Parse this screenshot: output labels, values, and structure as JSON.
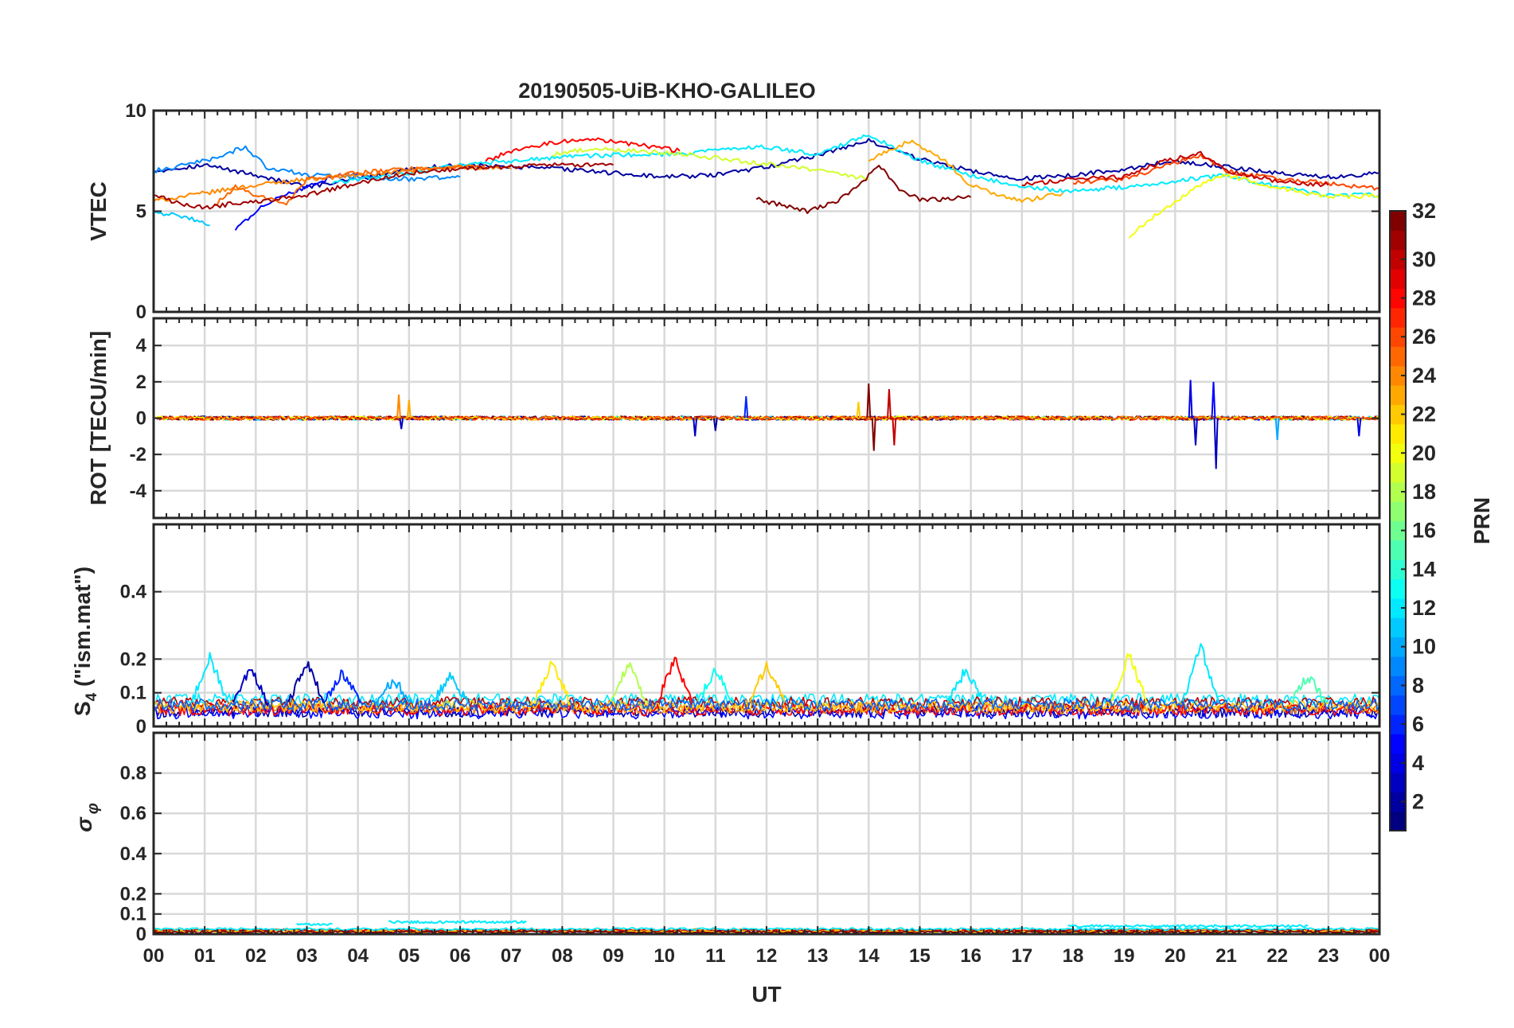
{
  "title": "20190505-UiB-KHO-GALILEO",
  "chart_data": [
    {
      "type": "line",
      "panel": "vtec",
      "ylabel": "VTEC",
      "ylim": [
        0,
        10
      ],
      "yticks": [
        0,
        5,
        10
      ],
      "grid": true,
      "baseline": 6.7,
      "series": [
        {
          "prn": 2,
          "x": [
            0,
            1,
            2,
            3,
            4,
            5,
            6,
            7,
            8,
            9,
            10,
            11,
            12,
            13,
            14,
            15,
            16,
            17,
            18,
            19,
            20,
            21,
            22,
            23,
            24
          ],
          "y": [
            7.0,
            7.3,
            6.8,
            6.2,
            6.6,
            7.1,
            7.3,
            7.2,
            7.1,
            6.9,
            6.7,
            6.8,
            7.2,
            7.8,
            8.5,
            7.6,
            7.0,
            6.6,
            6.8,
            7.1,
            7.5,
            7.2,
            6.9,
            6.7,
            6.9
          ]
        },
        {
          "prn": 5,
          "x": [
            1.6,
            2,
            2.5,
            3,
            3.5,
            4
          ],
          "y": [
            4.1,
            5.0,
            5.8,
            6.2,
            6.7,
            6.9
          ]
        },
        {
          "prn": 9,
          "x": [
            0,
            1,
            1.8,
            2.2,
            3,
            4,
            5,
            6
          ],
          "y": [
            7.0,
            7.5,
            8.2,
            7.2,
            6.8,
            6.7,
            6.6,
            6.7
          ]
        },
        {
          "prn": 11,
          "x": [
            0,
            0.4,
            0.8,
            1.1
          ],
          "y": [
            5.0,
            4.8,
            4.6,
            4.3
          ]
        },
        {
          "prn": 12,
          "x": [
            3.5,
            5,
            6,
            7,
            8,
            9,
            10,
            11,
            12,
            13,
            14,
            15,
            16,
            17,
            18,
            19,
            20,
            21,
            22,
            23,
            24
          ],
          "y": [
            6.4,
            6.9,
            7.3,
            7.5,
            7.7,
            7.8,
            7.8,
            8.0,
            8.2,
            7.8,
            8.8,
            7.5,
            6.8,
            6.2,
            6.0,
            6.2,
            6.5,
            6.8,
            6.2,
            5.8,
            5.8
          ]
        },
        {
          "prn": 19,
          "x": [
            7.8,
            8.5,
            9.5,
            10.5,
            11.5,
            12.5,
            13.5,
            14
          ],
          "y": [
            7.8,
            8.1,
            8.0,
            7.8,
            7.5,
            7.2,
            6.8,
            6.6
          ]
        },
        {
          "prn": 20,
          "x": [
            19.1,
            19.5,
            20,
            20.5,
            21,
            22,
            23,
            24
          ],
          "y": [
            3.7,
            4.6,
            5.5,
            6.3,
            6.8,
            6.2,
            5.7,
            5.8
          ]
        },
        {
          "prn": 24,
          "x": [
            0,
            1,
            2,
            3,
            4,
            5,
            6,
            7
          ],
          "y": [
            5.5,
            5.9,
            6.3,
            6.6,
            6.8,
            7.0,
            7.2,
            7.1
          ]
        },
        {
          "prn": 25,
          "x": [
            1.2,
            1.6,
            2,
            2.6,
            3,
            4,
            5,
            6,
            6.5
          ],
          "y": [
            5.3,
            6.2,
            5.8,
            5.4,
            6.6,
            6.9,
            7.1,
            7.2,
            7.3
          ]
        },
        {
          "prn": 23,
          "x": [
            14,
            14.8,
            15.5,
            16,
            16.5,
            17,
            17.8
          ],
          "y": [
            7.5,
            8.5,
            7.5,
            6.3,
            5.8,
            5.5,
            5.9
          ]
        },
        {
          "prn": 28,
          "x": [
            6.5,
            7,
            7.8,
            8.5,
            9.5,
            10.3
          ],
          "y": [
            7.5,
            8.0,
            8.4,
            8.6,
            8.3,
            8.0
          ]
        },
        {
          "prn": 26,
          "x": [
            18,
            19,
            20,
            20.5,
            21,
            22,
            23,
            24
          ],
          "y": [
            6.4,
            6.6,
            7.4,
            7.8,
            7.0,
            6.6,
            6.4,
            6.1
          ]
        },
        {
          "prn": 31,
          "x": [
            0,
            0.5,
            1,
            3,
            4,
            5,
            6,
            7,
            8,
            9
          ],
          "y": [
            5.8,
            5.4,
            5.2,
            5.8,
            6.4,
            6.9,
            7.1,
            7.2,
            7.3,
            7.3
          ]
        },
        {
          "prn": 32,
          "x": [
            11.8,
            12.3,
            12.8,
            13.3,
            13.8,
            14.2,
            14.6,
            15,
            15.5,
            16
          ],
          "y": [
            5.6,
            5.3,
            5.0,
            5.4,
            6.2,
            7.3,
            6.1,
            5.6,
            5.6,
            5.7
          ]
        },
        {
          "prn": 30,
          "x": [
            17,
            18,
            19,
            19.8,
            20.5,
            21,
            22,
            23
          ],
          "y": [
            6.3,
            6.6,
            6.7,
            7.5,
            7.9,
            7.0,
            6.5,
            6.3
          ]
        }
      ]
    },
    {
      "type": "line",
      "panel": "rot",
      "ylabel": "ROT [TECU/min]",
      "ylim": [
        -5.5,
        5.5
      ],
      "yticks": [
        -4,
        -2,
        0,
        2,
        4
      ],
      "grid": true,
      "baseline": 0,
      "spikes": [
        {
          "prn": 24,
          "x": 4.8,
          "y": 1.3
        },
        {
          "prn": 3,
          "x": 4.85,
          "y": -0.6
        },
        {
          "prn": 23,
          "x": 5.0,
          "y": 1.0
        },
        {
          "prn": 3,
          "x": 10.6,
          "y": -1.0
        },
        {
          "prn": 6,
          "x": 11.6,
          "y": 1.2
        },
        {
          "prn": 2,
          "x": 11.0,
          "y": -0.7
        },
        {
          "prn": 32,
          "x": 14.0,
          "y": 1.9
        },
        {
          "prn": 32,
          "x": 14.1,
          "y": -1.8
        },
        {
          "prn": 30,
          "x": 14.4,
          "y": 1.6
        },
        {
          "prn": 30,
          "x": 14.5,
          "y": -1.5
        },
        {
          "prn": 22,
          "x": 13.8,
          "y": 0.9
        },
        {
          "prn": 4,
          "x": 20.3,
          "y": 2.1
        },
        {
          "prn": 3,
          "x": 20.4,
          "y": -1.5
        },
        {
          "prn": 5,
          "x": 20.75,
          "y": 2.0
        },
        {
          "prn": 3,
          "x": 20.8,
          "y": -2.8
        },
        {
          "prn": 10,
          "x": 22.0,
          "y": -1.2
        },
        {
          "prn": 4,
          "x": 23.6,
          "y": -1.0
        }
      ]
    },
    {
      "type": "line",
      "panel": "s4",
      "ylabel": "S4 (\"ism.mat\")",
      "ylim": [
        0,
        0.6
      ],
      "yticks": [
        0,
        0.1,
        0.2,
        0.4
      ],
      "grid": true,
      "baseline": 0.06,
      "peaks": [
        {
          "prn": 12,
          "x": 1.1,
          "y": 0.21
        },
        {
          "prn": 3,
          "x": 1.9,
          "y": 0.17
        },
        {
          "prn": 2,
          "x": 3.0,
          "y": 0.19
        },
        {
          "prn": 6,
          "x": 3.7,
          "y": 0.16
        },
        {
          "prn": 10,
          "x": 4.7,
          "y": 0.14
        },
        {
          "prn": 11,
          "x": 5.8,
          "y": 0.15
        },
        {
          "prn": 21,
          "x": 7.8,
          "y": 0.19
        },
        {
          "prn": 18,
          "x": 9.3,
          "y": 0.19
        },
        {
          "prn": 28,
          "x": 10.2,
          "y": 0.2
        },
        {
          "prn": 13,
          "x": 11.0,
          "y": 0.17
        },
        {
          "prn": 22,
          "x": 12.0,
          "y": 0.18
        },
        {
          "prn": 12,
          "x": 15.9,
          "y": 0.17
        },
        {
          "prn": 20,
          "x": 19.1,
          "y": 0.22
        },
        {
          "prn": 12,
          "x": 20.5,
          "y": 0.24
        },
        {
          "prn": 15,
          "x": 22.6,
          "y": 0.15
        }
      ]
    },
    {
      "type": "line",
      "panel": "sigma",
      "ylabel": "σ φ",
      "ylim": [
        0,
        1
      ],
      "yticks": [
        0,
        0.1,
        0.2,
        0.4,
        0.6,
        0.8
      ],
      "grid": true,
      "baseline": 0.02,
      "bands": [
        {
          "prn": 12,
          "x": [
            2.8,
            3.5
          ],
          "y": 0.05
        },
        {
          "prn": 12,
          "x": [
            4.6,
            7.3
          ],
          "y": 0.06
        },
        {
          "prn": 12,
          "x": [
            17.9,
            22.6
          ],
          "y": 0.04
        }
      ]
    }
  ],
  "x_axis": {
    "label": "UT",
    "range": [
      0,
      24
    ],
    "ticks": [
      "00",
      "01",
      "02",
      "03",
      "04",
      "05",
      "06",
      "07",
      "08",
      "09",
      "10",
      "11",
      "12",
      "13",
      "14",
      "15",
      "16",
      "17",
      "18",
      "19",
      "20",
      "21",
      "22",
      "23",
      "00"
    ]
  },
  "colorbar": {
    "label": "PRN",
    "range": [
      1,
      32
    ],
    "ticks": [
      2,
      4,
      6,
      8,
      10,
      12,
      14,
      16,
      18,
      20,
      22,
      24,
      26,
      28,
      30,
      32
    ],
    "colormap": "jet"
  }
}
